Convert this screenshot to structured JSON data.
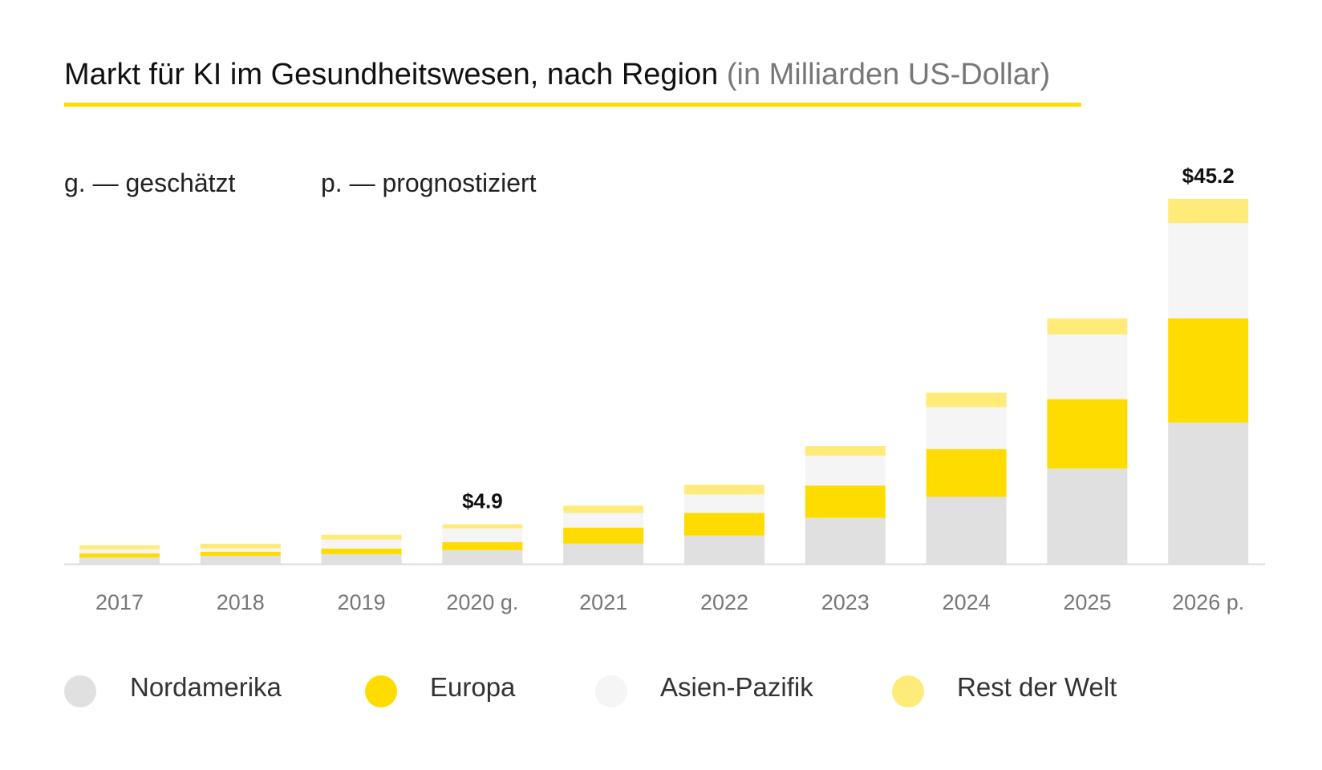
{
  "title": {
    "main": "Markt für KI im Gesundheitswesen, nach Region",
    "sub": "(in Milliarden US-Dollar)"
  },
  "notes": [
    {
      "key": "g.",
      "text": "— geschätzt"
    },
    {
      "key": "p.",
      "text": "— prognostiziert"
    }
  ],
  "chart_data": {
    "type": "bar",
    "stacked": true,
    "categories": [
      "2017",
      "2018",
      "2019",
      "2020 g.",
      "2021",
      "2022",
      "2023",
      "2024",
      "2025",
      "2026 p."
    ],
    "series": [
      {
        "name": "Nordamerika",
        "color": "#e0e0e0",
        "values": [
          0.8,
          1.0,
          1.2,
          1.7,
          2.5,
          3.5,
          5.7,
          8.3,
          11.8,
          17.5
        ]
      },
      {
        "name": "Europa",
        "color": "#ffdc00",
        "values": [
          0.5,
          0.5,
          0.7,
          1.0,
          2.0,
          2.8,
          4.0,
          5.9,
          8.6,
          12.9
        ]
      },
      {
        "name": "Asien-Pazifik",
        "color": "#f5f5f5",
        "values": [
          0.5,
          0.4,
          1.1,
          1.7,
          1.8,
          2.3,
          3.7,
          5.2,
          8.0,
          11.8
        ]
      },
      {
        "name": "Rest der Welt",
        "color": "#ffeb7a",
        "values": [
          0.5,
          0.6,
          0.6,
          0.5,
          0.9,
          1.2,
          1.2,
          1.8,
          2.0,
          3.0
        ]
      }
    ],
    "data_labels": [
      {
        "category": "2020 g.",
        "text": "$4.9"
      },
      {
        "category": "2026 p.",
        "text": "$45.2"
      }
    ],
    "ylim": [
      0,
      45.2
    ],
    "grid": false,
    "legend": "bottom"
  }
}
